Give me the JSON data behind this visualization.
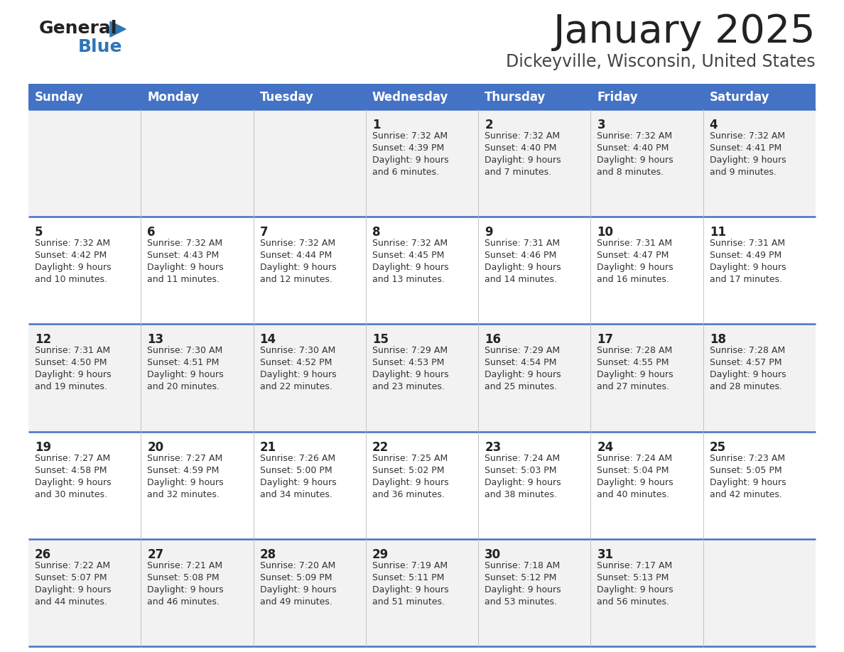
{
  "title": "January 2025",
  "subtitle": "Dickeyville, Wisconsin, United States",
  "header_color": "#4472C4",
  "header_text_color": "#FFFFFF",
  "cell_bg_even": "#F2F2F2",
  "cell_bg_odd": "#FFFFFF",
  "day_names": [
    "Sunday",
    "Monday",
    "Tuesday",
    "Wednesday",
    "Thursday",
    "Friday",
    "Saturday"
  ],
  "weeks": [
    [
      {
        "day": "",
        "sunrise": "",
        "sunset": "",
        "daylight": ""
      },
      {
        "day": "",
        "sunrise": "",
        "sunset": "",
        "daylight": ""
      },
      {
        "day": "",
        "sunrise": "",
        "sunset": "",
        "daylight": ""
      },
      {
        "day": "1",
        "sunrise": "Sunrise: 7:32 AM",
        "sunset": "Sunset: 4:39 PM",
        "daylight": "Daylight: 9 hours and 6 minutes."
      },
      {
        "day": "2",
        "sunrise": "Sunrise: 7:32 AM",
        "sunset": "Sunset: 4:40 PM",
        "daylight": "Daylight: 9 hours and 7 minutes."
      },
      {
        "day": "3",
        "sunrise": "Sunrise: 7:32 AM",
        "sunset": "Sunset: 4:40 PM",
        "daylight": "Daylight: 9 hours and 8 minutes."
      },
      {
        "day": "4",
        "sunrise": "Sunrise: 7:32 AM",
        "sunset": "Sunset: 4:41 PM",
        "daylight": "Daylight: 9 hours and 9 minutes."
      }
    ],
    [
      {
        "day": "5",
        "sunrise": "Sunrise: 7:32 AM",
        "sunset": "Sunset: 4:42 PM",
        "daylight": "Daylight: 9 hours and 10 minutes."
      },
      {
        "day": "6",
        "sunrise": "Sunrise: 7:32 AM",
        "sunset": "Sunset: 4:43 PM",
        "daylight": "Daylight: 9 hours and 11 minutes."
      },
      {
        "day": "7",
        "sunrise": "Sunrise: 7:32 AM",
        "sunset": "Sunset: 4:44 PM",
        "daylight": "Daylight: 9 hours and 12 minutes."
      },
      {
        "day": "8",
        "sunrise": "Sunrise: 7:32 AM",
        "sunset": "Sunset: 4:45 PM",
        "daylight": "Daylight: 9 hours and 13 minutes."
      },
      {
        "day": "9",
        "sunrise": "Sunrise: 7:31 AM",
        "sunset": "Sunset: 4:46 PM",
        "daylight": "Daylight: 9 hours and 14 minutes."
      },
      {
        "day": "10",
        "sunrise": "Sunrise: 7:31 AM",
        "sunset": "Sunset: 4:47 PM",
        "daylight": "Daylight: 9 hours and 16 minutes."
      },
      {
        "day": "11",
        "sunrise": "Sunrise: 7:31 AM",
        "sunset": "Sunset: 4:49 PM",
        "daylight": "Daylight: 9 hours and 17 minutes."
      }
    ],
    [
      {
        "day": "12",
        "sunrise": "Sunrise: 7:31 AM",
        "sunset": "Sunset: 4:50 PM",
        "daylight": "Daylight: 9 hours and 19 minutes."
      },
      {
        "day": "13",
        "sunrise": "Sunrise: 7:30 AM",
        "sunset": "Sunset: 4:51 PM",
        "daylight": "Daylight: 9 hours and 20 minutes."
      },
      {
        "day": "14",
        "sunrise": "Sunrise: 7:30 AM",
        "sunset": "Sunset: 4:52 PM",
        "daylight": "Daylight: 9 hours and 22 minutes."
      },
      {
        "day": "15",
        "sunrise": "Sunrise: 7:29 AM",
        "sunset": "Sunset: 4:53 PM",
        "daylight": "Daylight: 9 hours and 23 minutes."
      },
      {
        "day": "16",
        "sunrise": "Sunrise: 7:29 AM",
        "sunset": "Sunset: 4:54 PM",
        "daylight": "Daylight: 9 hours and 25 minutes."
      },
      {
        "day": "17",
        "sunrise": "Sunrise: 7:28 AM",
        "sunset": "Sunset: 4:55 PM",
        "daylight": "Daylight: 9 hours and 27 minutes."
      },
      {
        "day": "18",
        "sunrise": "Sunrise: 7:28 AM",
        "sunset": "Sunset: 4:57 PM",
        "daylight": "Daylight: 9 hours and 28 minutes."
      }
    ],
    [
      {
        "day": "19",
        "sunrise": "Sunrise: 7:27 AM",
        "sunset": "Sunset: 4:58 PM",
        "daylight": "Daylight: 9 hours and 30 minutes."
      },
      {
        "day": "20",
        "sunrise": "Sunrise: 7:27 AM",
        "sunset": "Sunset: 4:59 PM",
        "daylight": "Daylight: 9 hours and 32 minutes."
      },
      {
        "day": "21",
        "sunrise": "Sunrise: 7:26 AM",
        "sunset": "Sunset: 5:00 PM",
        "daylight": "Daylight: 9 hours and 34 minutes."
      },
      {
        "day": "22",
        "sunrise": "Sunrise: 7:25 AM",
        "sunset": "Sunset: 5:02 PM",
        "daylight": "Daylight: 9 hours and 36 minutes."
      },
      {
        "day": "23",
        "sunrise": "Sunrise: 7:24 AM",
        "sunset": "Sunset: 5:03 PM",
        "daylight": "Daylight: 9 hours and 38 minutes."
      },
      {
        "day": "24",
        "sunrise": "Sunrise: 7:24 AM",
        "sunset": "Sunset: 5:04 PM",
        "daylight": "Daylight: 9 hours and 40 minutes."
      },
      {
        "day": "25",
        "sunrise": "Sunrise: 7:23 AM",
        "sunset": "Sunset: 5:05 PM",
        "daylight": "Daylight: 9 hours and 42 minutes."
      }
    ],
    [
      {
        "day": "26",
        "sunrise": "Sunrise: 7:22 AM",
        "sunset": "Sunset: 5:07 PM",
        "daylight": "Daylight: 9 hours and 44 minutes."
      },
      {
        "day": "27",
        "sunrise": "Sunrise: 7:21 AM",
        "sunset": "Sunset: 5:08 PM",
        "daylight": "Daylight: 9 hours and 46 minutes."
      },
      {
        "day": "28",
        "sunrise": "Sunrise: 7:20 AM",
        "sunset": "Sunset: 5:09 PM",
        "daylight": "Daylight: 9 hours and 49 minutes."
      },
      {
        "day": "29",
        "sunrise": "Sunrise: 7:19 AM",
        "sunset": "Sunset: 5:11 PM",
        "daylight": "Daylight: 9 hours and 51 minutes."
      },
      {
        "day": "30",
        "sunrise": "Sunrise: 7:18 AM",
        "sunset": "Sunset: 5:12 PM",
        "daylight": "Daylight: 9 hours and 53 minutes."
      },
      {
        "day": "31",
        "sunrise": "Sunrise: 7:17 AM",
        "sunset": "Sunset: 5:13 PM",
        "daylight": "Daylight: 9 hours and 56 minutes."
      },
      {
        "day": "",
        "sunrise": "",
        "sunset": "",
        "daylight": ""
      }
    ]
  ],
  "logo_general_color": "#222222",
  "logo_blue_color": "#2E75B6",
  "border_line_color": "#4472C4",
  "grid_line_color": "#BBBBBB",
  "day_num_color": "#222222",
  "cell_text_color": "#333333",
  "title_color": "#222222",
  "subtitle_color": "#444444"
}
